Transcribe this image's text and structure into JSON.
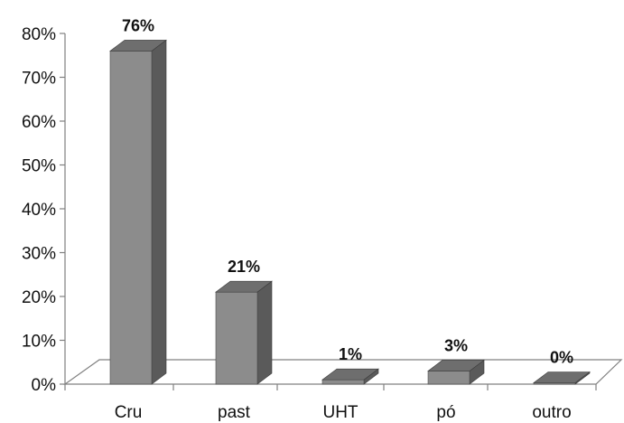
{
  "chart_data": {
    "type": "bar",
    "categories": [
      "Cru",
      "past",
      "UHT",
      "pó",
      "outro"
    ],
    "values": [
      76,
      21,
      1,
      3,
      0
    ],
    "data_labels": [
      "76%",
      "21%",
      "1%",
      "3%",
      "0%"
    ],
    "yticks": [
      "0%",
      "10%",
      "20%",
      "30%",
      "40%",
      "50%",
      "60%",
      "70%",
      "80%"
    ],
    "ylim": [
      0,
      80
    ],
    "grid": false,
    "legend": "none",
    "style": "3d-column",
    "colors": {
      "bar_front": "#8c8c8c",
      "bar_side": "#5a5a5a",
      "bar_top": "#6e6e6e",
      "floor": "#ffffff",
      "axis": "#808080"
    }
  }
}
